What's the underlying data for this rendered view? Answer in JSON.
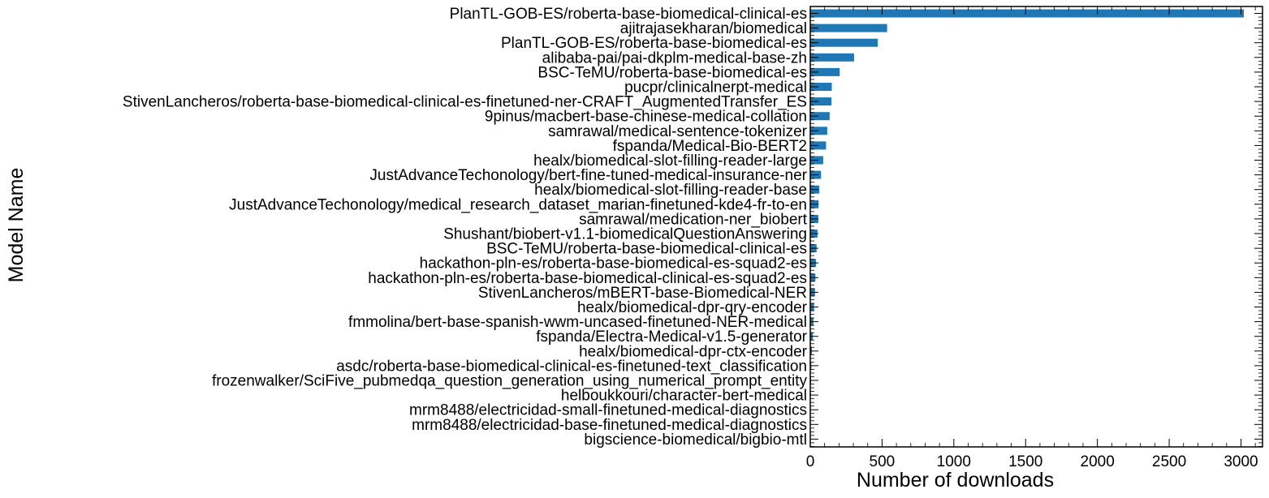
{
  "chart_data": {
    "type": "bar",
    "orientation": "horizontal",
    "xlabel": "Number of downloads",
    "ylabel": "Model Name",
    "xlim": [
      0,
      3150
    ],
    "xticks": [
      0,
      500,
      1000,
      1500,
      2000,
      2500,
      3000
    ],
    "xtick_labels": [
      "0",
      "500",
      "1000",
      "1500",
      "2000",
      "2500",
      "3000"
    ],
    "bar_color": "#1f77b4",
    "grid": false,
    "categories": [
      "PlanTL-GOB-ES/roberta-base-biomedical-clinical-es",
      "ajitrajasekharan/biomedical",
      "PlanTL-GOB-ES/roberta-base-biomedical-es",
      "alibaba-pai/pai-dkplm-medical-base-zh",
      "BSC-TeMU/roberta-base-biomedical-es",
      "pucpr/clinicalnerpt-medical",
      "StivenLancheros/roberta-base-biomedical-clinical-es-finetuned-ner-CRAFT_AugmentedTransfer_ES",
      "9pinus/macbert-base-chinese-medical-collation",
      "samrawal/medical-sentence-tokenizer",
      "fspanda/Medical-Bio-BERT2",
      "healx/biomedical-slot-filling-reader-large",
      "JustAdvanceTechonology/bert-fine-tuned-medical-insurance-ner",
      "healx/biomedical-slot-filling-reader-base",
      "JustAdvanceTechonology/medical_research_dataset_marian-finetuned-kde4-fr-to-en",
      "samrawal/medication-ner_biobert",
      "Shushant/biobert-v1.1-biomedicalQuestionAnswering",
      "BSC-TeMU/roberta-base-biomedical-clinical-es",
      "hackathon-pln-es/roberta-base-biomedical-es-squad2-es",
      "hackathon-pln-es/roberta-base-biomedical-clinical-es-squad2-es",
      "StivenLancheros/mBERT-base-Biomedical-NER",
      "healx/biomedical-dpr-qry-encoder",
      "fmmolina/bert-base-spanish-wwm-uncased-finetuned-NER-medical",
      "fspanda/Electra-Medical-v1.5-generator",
      "healx/biomedical-dpr-ctx-encoder",
      "asdc/roberta-base-biomedical-clinical-es-finetuned-text_classification",
      "frozenwalker/SciFive_pubmedqa_question_generation_using_numerical_prompt_entity",
      "helboukkouri/character-bert-medical",
      "mrm8488/electricidad-small-finetuned-medical-diagnostics",
      "mrm8488/electricidad-base-finetuned-medical-diagnostics",
      "bigscience-biomedical/bigbio-mtl"
    ],
    "values": [
      3020,
      535,
      470,
      305,
      205,
      150,
      148,
      135,
      118,
      110,
      90,
      75,
      62,
      58,
      56,
      50,
      44,
      40,
      36,
      33,
      27,
      22,
      18,
      12,
      8,
      6,
      4,
      3,
      2,
      1
    ]
  }
}
